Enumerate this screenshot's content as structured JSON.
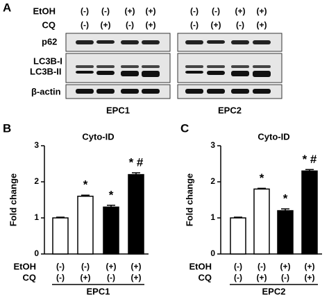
{
  "panel_a": {
    "letter": "A",
    "row_labels": [
      "EtOH",
      "CQ"
    ],
    "etoh": [
      "(-)",
      "(-)",
      "(+)",
      "(+)"
    ],
    "cq": [
      "(-)",
      "(+)",
      "(-)",
      "(+)"
    ],
    "blot_labels": [
      "p62",
      "LC3B-I",
      "LC3B-II",
      "β-actin"
    ],
    "groups": [
      "EPC1",
      "EPC2"
    ]
  },
  "chart_data": [
    {
      "type": "bar",
      "letter": "B",
      "title": "Cyto-ID",
      "y_label": "Fold change",
      "values": [
        1.0,
        1.6,
        1.3,
        2.2
      ],
      "errors": [
        0.02,
        0.03,
        0.05,
        0.05
      ],
      "colors": [
        "#ffffff",
        "#ffffff",
        "#000000",
        "#000000"
      ],
      "annotations": [
        null,
        "*",
        "*",
        "* #"
      ],
      "row_labels": [
        "EtOH",
        "CQ"
      ],
      "etoh": [
        "(-)",
        "(-)",
        "(+)",
        "(+)"
      ],
      "cq": [
        "(-)",
        "(+)",
        "(-)",
        "(+)"
      ],
      "group": "EPC1",
      "ylim": [
        0,
        3
      ],
      "yticks": [
        0,
        1,
        2,
        3
      ]
    },
    {
      "type": "bar",
      "letter": "C",
      "title": "Cyto-ID",
      "y_label": "Fold change",
      "values": [
        1.0,
        1.8,
        1.2,
        2.3
      ],
      "errors": [
        0.02,
        0.02,
        0.05,
        0.04
      ],
      "colors": [
        "#ffffff",
        "#ffffff",
        "#000000",
        "#000000"
      ],
      "annotations": [
        null,
        "*",
        "*",
        "* #"
      ],
      "row_labels": [
        "EtOH",
        "CQ"
      ],
      "etoh": [
        "(-)",
        "(-)",
        "(+)",
        "(+)"
      ],
      "cq": [
        "(-)",
        "(+)",
        "(-)",
        "(+)"
      ],
      "group": "EPC2",
      "ylim": [
        0,
        3
      ],
      "yticks": [
        0,
        1,
        2,
        3
      ]
    }
  ]
}
